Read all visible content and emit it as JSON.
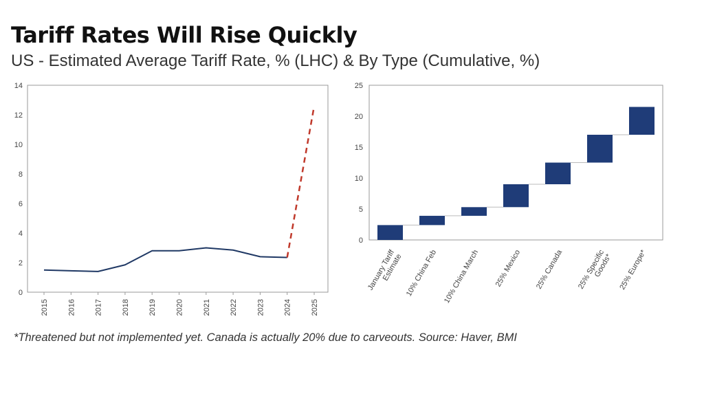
{
  "header": {
    "title": "Tariff Rates Will Rise Quickly",
    "subtitle": "US - Estimated Average Tariff Rate, % (LHC) & By Type (Cumulative, %)"
  },
  "footnote": "*Threatened but not implemented yet. Canada is actually 20% due to carveouts. Source: Haver, BMI",
  "colors": {
    "line": "#1f3864",
    "forecast": "#c0392b",
    "bar": "#1f3c78",
    "axis": "#999999"
  },
  "chart_data": [
    {
      "type": "line",
      "x": [
        "2015",
        "2016",
        "2017",
        "2018",
        "2019",
        "2020",
        "2021",
        "2022",
        "2023",
        "2024",
        "2025"
      ],
      "series": [
        {
          "values": [
            1.5,
            1.45,
            1.4,
            1.85,
            2.8,
            2.8,
            3.0,
            2.85,
            2.4,
            2.35,
            null
          ]
        },
        {
          "style": "dashed",
          "values": [
            null,
            null,
            null,
            null,
            null,
            null,
            null,
            null,
            null,
            2.35,
            12.6
          ]
        }
      ],
      "ylim": [
        0,
        14
      ],
      "yticks": [
        "0",
        "2",
        "4",
        "6",
        "8",
        "10",
        "12",
        "14"
      ],
      "grid": false
    },
    {
      "type": "bar",
      "subtype": "waterfall",
      "categories": [
        "January Tariff Estimate",
        "10% China Feb",
        "10% China March",
        "25% Mexico",
        "25% Canada",
        "25% Specific Goods*",
        "25% Europe*"
      ],
      "category_lines": [
        [
          "January Tariff",
          "Estimate"
        ],
        [
          "10% China Feb"
        ],
        [
          "10% China March"
        ],
        [
          "25% Mexico"
        ],
        [
          "25% Canada"
        ],
        [
          "25% Specific",
          "Goods*"
        ],
        [
          "25% Europe*"
        ]
      ],
      "ranges": [
        [
          0,
          2.4
        ],
        [
          2.4,
          3.9
        ],
        [
          3.9,
          5.3
        ],
        [
          5.3,
          9.0
        ],
        [
          9.0,
          12.5
        ],
        [
          12.5,
          17.0
        ],
        [
          17.0,
          21.5
        ]
      ],
      "ylim": [
        0,
        25
      ],
      "yticks": [
        "0",
        "5",
        "10",
        "15",
        "20",
        "25"
      ],
      "grid": false
    }
  ]
}
